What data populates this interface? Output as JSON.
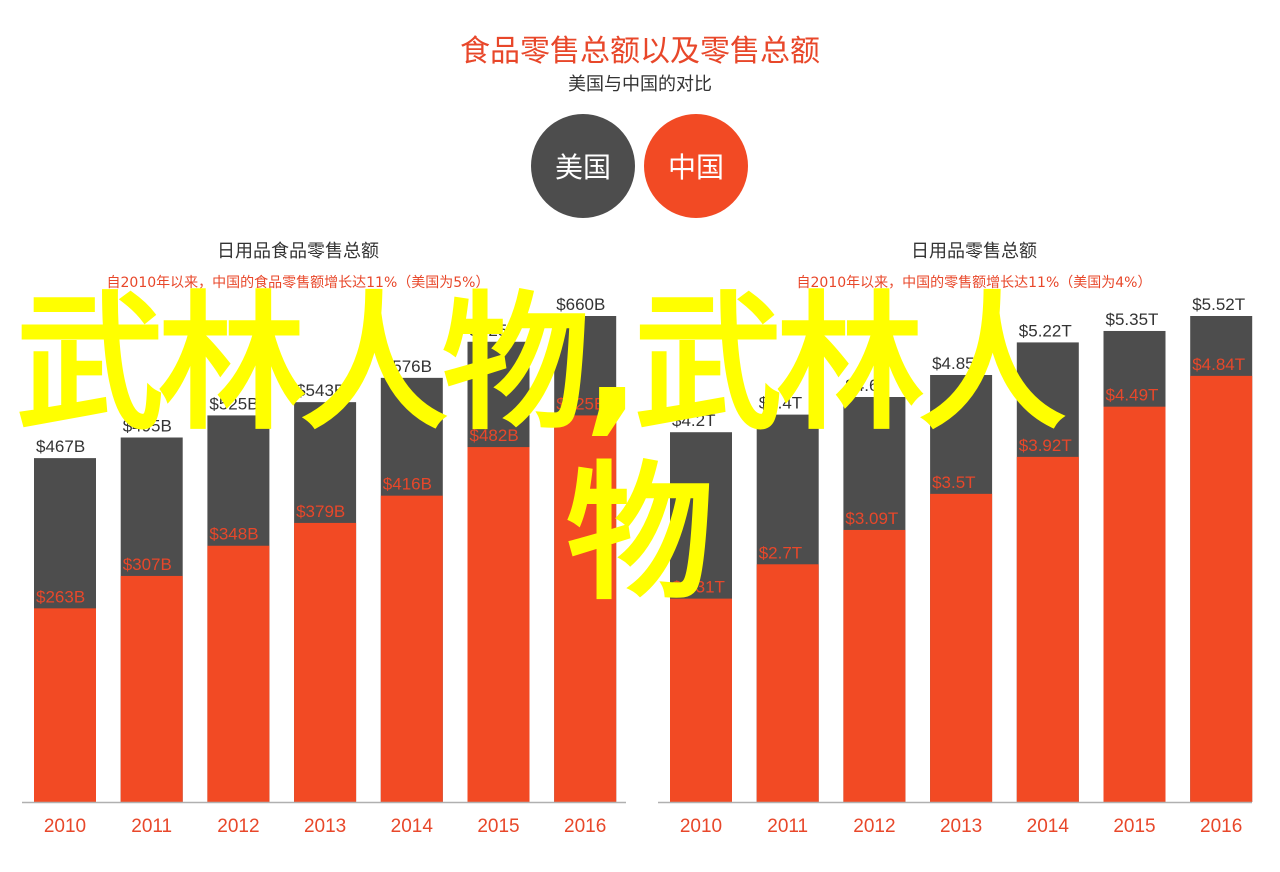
{
  "title": "食品零售总额以及零售总额",
  "subtitle": "美国与中国的对比",
  "legend": [
    {
      "label": "美国",
      "color": "#4d4d4d"
    },
    {
      "label": "中国",
      "color": "#f24a24"
    }
  ],
  "colors": {
    "us": "#4d4d4d",
    "china": "#f24a24",
    "axis": "#b0b0b0",
    "year": "#e8472a"
  },
  "overlay_text": {
    "line1": "武林人物,武林人",
    "line2": "物"
  },
  "chart_data": [
    {
      "type": "bar",
      "title": "日用品食品零售总额",
      "subtitle": "自2010年以来，中国的食品零售额增长达11%（美国为5%）",
      "categories": [
        "2010",
        "2011",
        "2012",
        "2013",
        "2014",
        "2015",
        "2016"
      ],
      "series": [
        {
          "name": "美国",
          "values": [
            467,
            495,
            525,
            543,
            576,
            625,
            660
          ],
          "labels": [
            "$467B",
            "$495B",
            "$525B",
            "$543B",
            "$576B",
            "$625B",
            "$660B"
          ]
        },
        {
          "name": "中国",
          "values": [
            263,
            307,
            348,
            379,
            416,
            482,
            525
          ],
          "labels": [
            "$263B",
            "$307B",
            "$348B",
            "$379B",
            "$416B",
            "$482B",
            "$525B"
          ]
        }
      ],
      "ylim": [
        0,
        700
      ]
    },
    {
      "type": "bar",
      "title": "日用品零售总额",
      "subtitle": "自2010年以来，中国的零售额增长达11%（美国为4%）",
      "categories": [
        "2010",
        "2011",
        "2012",
        "2013",
        "2014",
        "2015",
        "2016"
      ],
      "series": [
        {
          "name": "美国",
          "values": [
            4.2,
            4.4,
            4.6,
            4.85,
            5.22,
            5.35,
            5.52
          ],
          "labels": [
            "$4.2T",
            "$4.4T",
            "$4.6T",
            "$4.85T",
            "$5.22T",
            "$5.35T",
            "$5.52T"
          ]
        },
        {
          "name": "中国",
          "values": [
            2.31,
            2.7,
            3.09,
            3.5,
            3.92,
            4.49,
            4.84
          ],
          "labels": [
            "$2.31T",
            "$2.7T",
            "$3.09T",
            "$3.5T",
            "$3.92T",
            "$4.49T",
            "$4.84T"
          ]
        }
      ],
      "ylim": [
        0,
        5.85
      ]
    }
  ]
}
